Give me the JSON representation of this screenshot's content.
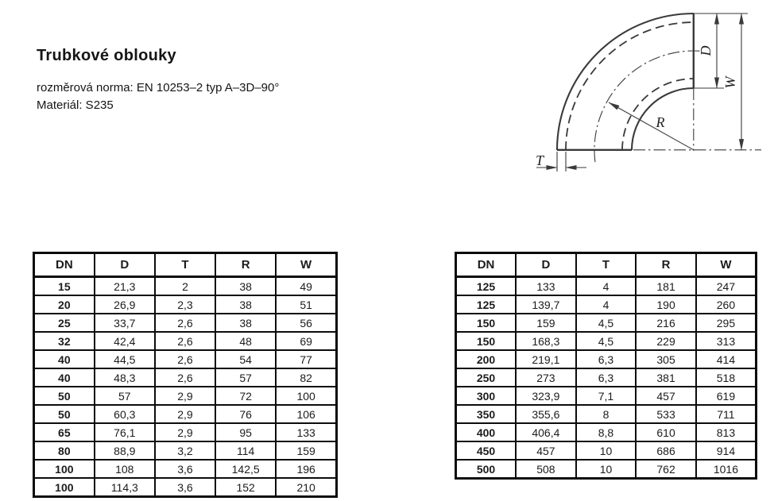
{
  "document": {
    "title": "Trubkové oblouky",
    "norm_line": "rozměrová norma: EN 10253–2 typ A–3D–90°",
    "material_line": "Materiál: S235"
  },
  "diagram": {
    "labels": {
      "D": "D",
      "W": "W",
      "R": "R",
      "T": "T"
    }
  },
  "tables": {
    "columns": [
      "DN",
      "D",
      "T",
      "R",
      "W"
    ],
    "left_rows": [
      [
        "15",
        "21,3",
        "2",
        "38",
        "49"
      ],
      [
        "20",
        "26,9",
        "2,3",
        "38",
        "51"
      ],
      [
        "25",
        "33,7",
        "2,6",
        "38",
        "56"
      ],
      [
        "32",
        "42,4",
        "2,6",
        "48",
        "69"
      ],
      [
        "40",
        "44,5",
        "2,6",
        "54",
        "77"
      ],
      [
        "40",
        "48,3",
        "2,6",
        "57",
        "82"
      ],
      [
        "50",
        "57",
        "2,9",
        "72",
        "100"
      ],
      [
        "50",
        "60,3",
        "2,9",
        "76",
        "106"
      ],
      [
        "65",
        "76,1",
        "2,9",
        "95",
        "133"
      ],
      [
        "80",
        "88,9",
        "3,2",
        "114",
        "159"
      ],
      [
        "100",
        "108",
        "3,6",
        "142,5",
        "196"
      ],
      [
        "100",
        "114,3",
        "3,6",
        "152",
        "210"
      ]
    ],
    "right_rows": [
      [
        "125",
        "133",
        "4",
        "181",
        "247"
      ],
      [
        "125",
        "139,7",
        "4",
        "190",
        "260"
      ],
      [
        "150",
        "159",
        "4,5",
        "216",
        "295"
      ],
      [
        "150",
        "168,3",
        "4,5",
        "229",
        "313"
      ],
      [
        "200",
        "219,1",
        "6,3",
        "305",
        "414"
      ],
      [
        "250",
        "273",
        "6,3",
        "381",
        "518"
      ],
      [
        "300",
        "323,9",
        "7,1",
        "457",
        "619"
      ],
      [
        "350",
        "355,6",
        "8",
        "533",
        "711"
      ],
      [
        "400",
        "406,4",
        "8,8",
        "610",
        "813"
      ],
      [
        "450",
        "457",
        "10",
        "686",
        "914"
      ],
      [
        "500",
        "508",
        "10",
        "762",
        "1016"
      ]
    ]
  },
  "colors": {
    "line": "#3a3a3a",
    "table_border": "#0c0c0c",
    "text": "#1a1a1a"
  }
}
